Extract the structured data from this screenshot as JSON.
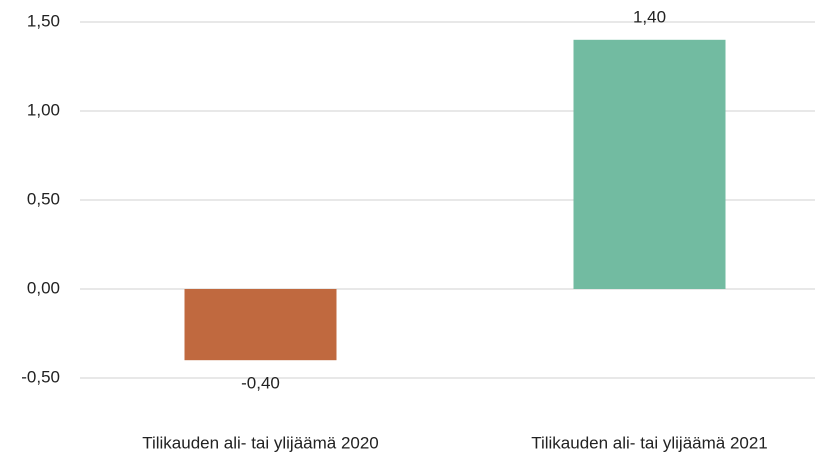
{
  "chart_data": {
    "type": "bar",
    "categories": [
      "Tilikauden ali- tai ylijäämä 2020",
      "Tilikauden ali- tai ylijäämä 2021"
    ],
    "values": [
      -0.4,
      1.4
    ],
    "value_labels": [
      "-0,40",
      "1,40"
    ],
    "colors": [
      "#c0693f",
      "#72bba1"
    ],
    "ylim": [
      -0.5,
      1.5
    ],
    "yticks": [
      {
        "value": -0.5,
        "label": "-0,50"
      },
      {
        "value": 0,
        "label": "0,00"
      },
      {
        "value": 0.5,
        "label": "0,50"
      },
      {
        "value": 1,
        "label": "1,00"
      },
      {
        "value": 1.5,
        "label": "1,50"
      }
    ],
    "grid": true
  }
}
